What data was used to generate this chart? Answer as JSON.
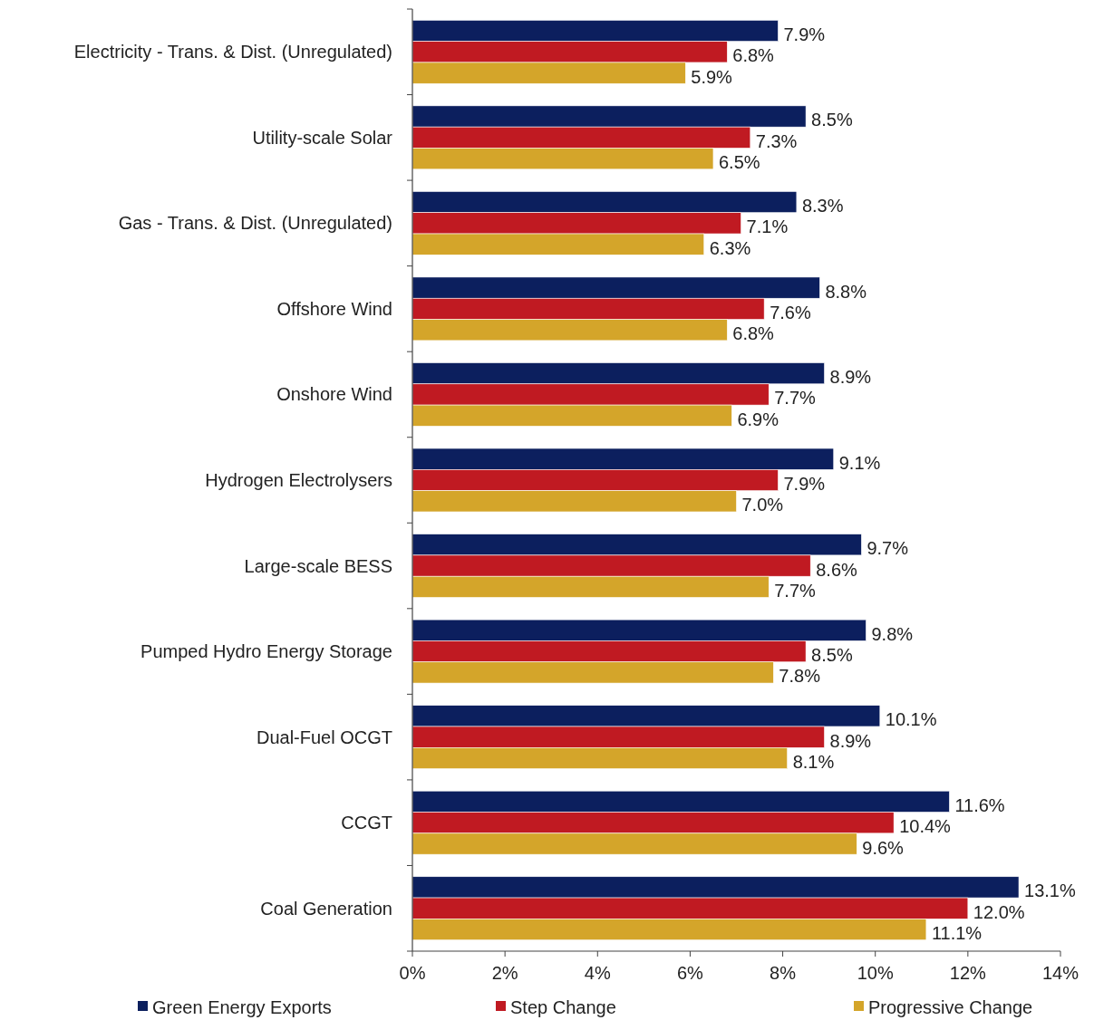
{
  "chart_data": {
    "type": "bar",
    "orientation": "horizontal",
    "categories": [
      "Electricity - Trans. & Dist. (Unregulated)",
      "Utility-scale Solar",
      "Gas - Trans. & Dist. (Unregulated)",
      "Offshore Wind",
      "Onshore Wind",
      "Hydrogen Electrolysers",
      "Large-scale BESS",
      "Pumped Hydro Energy Storage",
      "Dual-Fuel OCGT",
      "CCGT",
      "Coal Generation"
    ],
    "series": [
      {
        "name": "Green Energy Exports",
        "color": "#0c1f5e",
        "values": [
          7.9,
          8.5,
          8.3,
          8.8,
          8.9,
          9.1,
          9.7,
          9.8,
          10.1,
          11.6,
          13.1
        ],
        "value_labels": [
          "7.9%",
          "8.5%",
          "8.3%",
          "8.8%",
          "8.9%",
          "9.1%",
          "9.7%",
          "9.8%",
          "10.1%",
          "11.6%",
          "13.1%"
        ]
      },
      {
        "name": "Step Change",
        "color": "#c01a22",
        "values": [
          6.8,
          7.3,
          7.1,
          7.6,
          7.7,
          7.9,
          8.6,
          8.5,
          8.9,
          10.4,
          12.0
        ],
        "value_labels": [
          "6.8%",
          "7.3%",
          "7.1%",
          "7.6%",
          "7.7%",
          "7.9%",
          "8.6%",
          "8.5%",
          "8.9%",
          "10.4%",
          "12.0%"
        ]
      },
      {
        "name": "Progressive Change",
        "color": "#d4a52a",
        "values": [
          5.9,
          6.5,
          6.3,
          6.8,
          6.9,
          7.0,
          7.7,
          7.8,
          8.1,
          9.6,
          11.1
        ],
        "value_labels": [
          "5.9%",
          "6.5%",
          "6.3%",
          "6.8%",
          "6.9%",
          "7.0%",
          "7.7%",
          "7.8%",
          "8.1%",
          "9.6%",
          "11.1%"
        ]
      }
    ],
    "xlim": [
      0,
      14
    ],
    "xticks": [
      {
        "value": 0,
        "label": "0%"
      },
      {
        "value": 2,
        "label": "2%"
      },
      {
        "value": 4,
        "label": "4%"
      },
      {
        "value": 6,
        "label": "6%"
      },
      {
        "value": 8,
        "label": "8%"
      },
      {
        "value": 10,
        "label": "10%"
      },
      {
        "value": 12,
        "label": "12%"
      },
      {
        "value": 14,
        "label": "14%"
      }
    ],
    "grid": false,
    "legend": "bottom"
  }
}
